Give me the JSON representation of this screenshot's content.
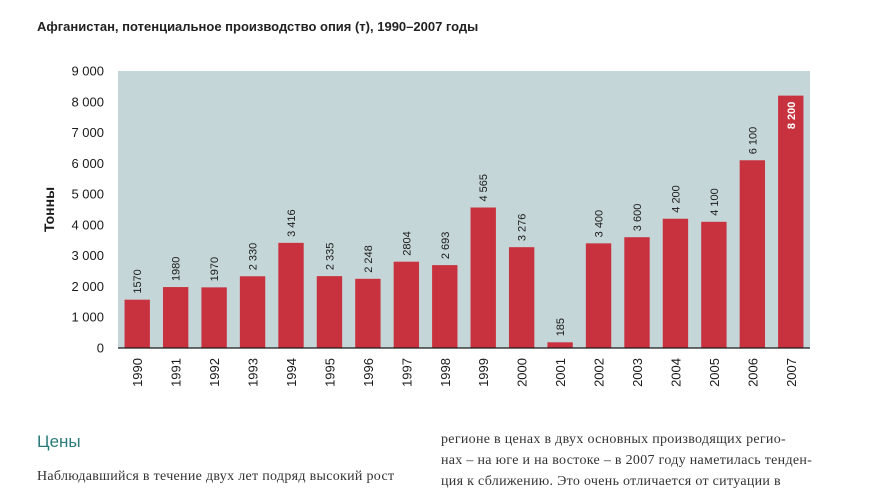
{
  "chart_data": {
    "type": "bar",
    "title": "Афганистан, потенциальное производство опия (т), 1990–2007 годы",
    "ylabel": "Тонны",
    "xlabel": "",
    "ylim": [
      0,
      9000
    ],
    "yticks": [
      0,
      1000,
      2000,
      3000,
      4000,
      5000,
      6000,
      7000,
      8000,
      9000
    ],
    "ytick_labels": [
      "0",
      "1 000",
      "2 000",
      "3 000",
      "4 000",
      "5 000",
      "6 000",
      "7 000",
      "8 000",
      "9 000"
    ],
    "categories": [
      "1990",
      "1991",
      "1992",
      "1993",
      "1994",
      "1995",
      "1996",
      "1997",
      "1998",
      "1999",
      "2000",
      "2001",
      "2002",
      "2003",
      "2004",
      "2005",
      "2006",
      "2007"
    ],
    "values": [
      1570,
      1980,
      1970,
      2330,
      3416,
      2335,
      2248,
      2804,
      2693,
      4565,
      3276,
      185,
      3400,
      3600,
      4200,
      4100,
      6100,
      8200
    ],
    "value_labels": [
      "1570",
      "1980",
      "1970",
      "2 330",
      "3 416",
      "2 335",
      "2 248",
      "2804",
      "2 693",
      "4 565",
      "3 276",
      "185",
      "3 400",
      "3 600",
      "4 200",
      "4 100",
      "6 100",
      "8 200"
    ],
    "grid": false,
    "legend": "none",
    "colors": {
      "bar": "#c8323f",
      "plot_bg": "#c5d6d8",
      "axis": "#1a1a1a"
    }
  },
  "article": {
    "heading": "Цены",
    "left_lines": [
      "Наблюдавшийся в течение двух лет подряд высокий рост"
    ],
    "right_lines": [
      "регионе в ценах в двух основных производящих регио-",
      "нах – на юге и на востоке – в 2007 году наметилась тенден-",
      "ция к сближению. Это очень отличается от ситуации в"
    ]
  }
}
